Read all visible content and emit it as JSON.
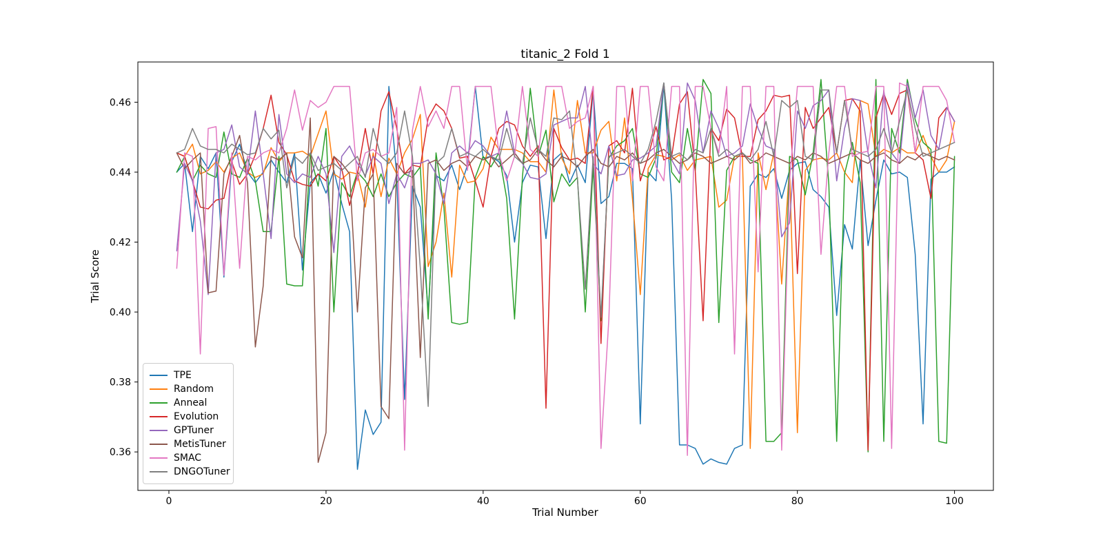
{
  "chart_data": {
    "type": "line",
    "title": "titanic_2 Fold 1",
    "xlabel": "Trial Number",
    "ylabel": "Trial Score",
    "xlim": [
      -3.95,
      104.95
    ],
    "ylim": [
      0.349,
      0.4715
    ],
    "xticks": [
      0,
      20,
      40,
      60,
      80,
      100
    ],
    "yticks": [
      "0.36",
      "0.38",
      "0.40",
      "0.42",
      "0.44",
      "0.46"
    ],
    "grid": false,
    "legend_position": "lower-left",
    "x0": 1,
    "dx": 1,
    "n_points": 100,
    "series": [
      {
        "name": "TPE",
        "color": "#1f77b4",
        "values": [
          0.44,
          0.4425,
          0.423,
          0.4445,
          0.441,
          0.4455,
          0.41,
          0.443,
          0.448,
          0.44,
          0.437,
          0.44,
          0.4435,
          0.44,
          0.437,
          0.4455,
          0.412,
          0.437,
          0.4395,
          0.434,
          0.4405,
          0.431,
          0.423,
          0.355,
          0.372,
          0.365,
          0.3685,
          0.4645,
          0.439,
          0.375,
          0.436,
          0.43,
          0.4,
          0.439,
          0.4375,
          0.442,
          0.435,
          0.442,
          0.4645,
          0.444,
          0.4445,
          0.443,
          0.439,
          0.42,
          0.437,
          0.442,
          0.4415,
          0.421,
          0.4435,
          0.4455,
          0.437,
          0.442,
          0.437,
          0.4635,
          0.431,
          0.433,
          0.4425,
          0.4425,
          0.441,
          0.368,
          0.44,
          0.4375,
          0.465,
          0.432,
          0.362,
          0.362,
          0.361,
          0.3565,
          0.358,
          0.357,
          0.3565,
          0.361,
          0.362,
          0.436,
          0.4395,
          0.4385,
          0.441,
          0.4325,
          0.4405,
          0.4425,
          0.443,
          0.435,
          0.433,
          0.43,
          0.399,
          0.425,
          0.418,
          0.4435,
          0.419,
          0.432,
          0.4435,
          0.4395,
          0.44,
          0.4385,
          0.4165,
          0.368,
          0.438,
          0.44,
          0.44,
          0.4415
        ]
      },
      {
        "name": "Random",
        "color": "#ff7f0e",
        "values": [
          0.4455,
          0.4445,
          0.448,
          0.4395,
          0.4405,
          0.443,
          0.44,
          0.444,
          0.4455,
          0.44,
          0.4385,
          0.4395,
          0.447,
          0.443,
          0.4455,
          0.4455,
          0.446,
          0.4445,
          0.451,
          0.4575,
          0.4395,
          0.438,
          0.44,
          0.4395,
          0.43,
          0.4455,
          0.433,
          0.444,
          0.4395,
          0.4455,
          0.4495,
          0.4565,
          0.413,
          0.42,
          0.434,
          0.41,
          0.442,
          0.437,
          0.4375,
          0.441,
          0.45,
          0.4465,
          0.4465,
          0.4465,
          0.4455,
          0.443,
          0.443,
          0.44,
          0.4635,
          0.444,
          0.4395,
          0.4605,
          0.4455,
          0.4455,
          0.452,
          0.4545,
          0.4375,
          0.4555,
          0.4325,
          0.405,
          0.441,
          0.445,
          0.4445,
          0.4435,
          0.445,
          0.4405,
          0.4435,
          0.444,
          0.4445,
          0.43,
          0.432,
          0.4445,
          0.4445,
          0.361,
          0.4455,
          0.435,
          0.4455,
          0.408,
          0.4415,
          0.3655,
          0.4405,
          0.4435,
          0.444,
          0.4435,
          0.4455,
          0.44,
          0.437,
          0.4605,
          0.4595,
          0.4445,
          0.4465,
          0.4455,
          0.447,
          0.4455,
          0.4455,
          0.4505,
          0.4445,
          0.44,
          0.4435,
          0.4545
        ]
      },
      {
        "name": "Anneal",
        "color": "#2ca02c",
        "values": [
          0.44,
          0.4445,
          0.4375,
          0.442,
          0.4395,
          0.4385,
          0.4515,
          0.4395,
          0.4385,
          0.444,
          0.4375,
          0.423,
          0.423,
          0.4445,
          0.408,
          0.4075,
          0.4075,
          0.445,
          0.436,
          0.4525,
          0.4,
          0.437,
          0.433,
          0.44,
          0.4375,
          0.433,
          0.4395,
          0.433,
          0.437,
          0.4395,
          0.4385,
          0.4415,
          0.398,
          0.4455,
          0.43,
          0.397,
          0.3965,
          0.397,
          0.4385,
          0.4445,
          0.4415,
          0.4455,
          0.4325,
          0.398,
          0.4385,
          0.464,
          0.4445,
          0.452,
          0.4315,
          0.4395,
          0.436,
          0.4385,
          0.4,
          0.4415,
          0.3975,
          0.444,
          0.4475,
          0.449,
          0.4525,
          0.4395,
          0.4385,
          0.444,
          0.4655,
          0.44,
          0.437,
          0.4525,
          0.4405,
          0.4665,
          0.4625,
          0.397,
          0.4405,
          0.4445,
          0.4455,
          0.4435,
          0.4425,
          0.363,
          0.363,
          0.3655,
          0.4445,
          0.4435,
          0.4335,
          0.4455,
          0.4665,
          0.4365,
          0.363,
          0.4395,
          0.4485,
          0.437,
          0.36,
          0.4665,
          0.363,
          0.4525,
          0.4455,
          0.4665,
          0.455,
          0.4485,
          0.4465,
          0.363,
          0.3625,
          0.4445
        ]
      },
      {
        "name": "Evolution",
        "color": "#d62728",
        "values": [
          0.4455,
          0.4445,
          0.4375,
          0.43,
          0.4295,
          0.432,
          0.4325,
          0.443,
          0.4365,
          0.4395,
          0.445,
          0.4525,
          0.462,
          0.4485,
          0.445,
          0.4375,
          0.4365,
          0.436,
          0.4395,
          0.4375,
          0.4445,
          0.441,
          0.4305,
          0.4395,
          0.4525,
          0.4395,
          0.4575,
          0.463,
          0.4525,
          0.4395,
          0.442,
          0.4415,
          0.4555,
          0.4595,
          0.4575,
          0.4525,
          0.444,
          0.4445,
          0.4375,
          0.43,
          0.4445,
          0.4525,
          0.4545,
          0.4535,
          0.4475,
          0.4445,
          0.4475,
          0.3725,
          0.4525,
          0.447,
          0.4435,
          0.444,
          0.4425,
          0.4645,
          0.391,
          0.4475,
          0.449,
          0.4455,
          0.464,
          0.4375,
          0.4445,
          0.453,
          0.4435,
          0.4445,
          0.4595,
          0.463,
          0.4405,
          0.3975,
          0.4525,
          0.449,
          0.458,
          0.4555,
          0.4445,
          0.4445,
          0.455,
          0.4575,
          0.462,
          0.4615,
          0.462,
          0.411,
          0.4585,
          0.4525,
          0.4555,
          0.4585,
          0.4455,
          0.4605,
          0.461,
          0.4575,
          0.3605,
          0.4555,
          0.4625,
          0.4565,
          0.4625,
          0.4635,
          0.4455,
          0.4435,
          0.4325,
          0.4555,
          0.4585,
          0.4545
        ]
      },
      {
        "name": "GPTuner",
        "color": "#9467bd",
        "values": [
          0.4175,
          0.4425,
          0.4375,
          0.426,
          0.405,
          0.4455,
          0.4465,
          0.4535,
          0.4415,
          0.4395,
          0.4575,
          0.4395,
          0.421,
          0.4565,
          0.4395,
          0.437,
          0.4395,
          0.4385,
          0.4445,
          0.4395,
          0.417,
          0.4445,
          0.4475,
          0.4425,
          0.439,
          0.4445,
          0.4425,
          0.431,
          0.4395,
          0.4355,
          0.4425,
          0.4425,
          0.4435,
          0.4395,
          0.431,
          0.4455,
          0.4475,
          0.4455,
          0.449,
          0.4475,
          0.4445,
          0.4455,
          0.4575,
          0.4455,
          0.4425,
          0.4385,
          0.438,
          0.4395,
          0.4535,
          0.4545,
          0.4555,
          0.4555,
          0.4645,
          0.4425,
          0.4395,
          0.4475,
          0.439,
          0.4395,
          0.4435,
          0.444,
          0.4455,
          0.4475,
          0.4655,
          0.4435,
          0.4395,
          0.4655,
          0.4605,
          0.4455,
          0.4575,
          0.4525,
          0.4445,
          0.4455,
          0.4475,
          0.4595,
          0.4525,
          0.4475,
          0.4465,
          0.4215,
          0.4255,
          0.4575,
          0.4525,
          0.459,
          0.4605,
          0.4635,
          0.4375,
          0.4525,
          0.461,
          0.4605,
          0.4455,
          0.4355,
          0.4635,
          0.4455,
          0.4425,
          0.4655,
          0.4555,
          0.4635,
          0.4505,
          0.4465,
          0.4585,
          0.4545
        ]
      },
      {
        "name": "MetisTuner",
        "color": "#8c564b",
        "values": [
          0.4455,
          0.441,
          0.4435,
          0.4455,
          0.4055,
          0.406,
          0.4395,
          0.4445,
          0.4505,
          0.437,
          0.39,
          0.4075,
          0.4445,
          0.4435,
          0.4455,
          0.4215,
          0.4155,
          0.4555,
          0.357,
          0.3655,
          0.4445,
          0.4425,
          0.4395,
          0.4,
          0.4355,
          0.4395,
          0.373,
          0.3695,
          0.4425,
          0.4395,
          0.4405,
          0.387,
          0.4425,
          0.4435,
          0.4405,
          0.4425,
          0.4435,
          0.4415,
          0.4445,
          0.4435,
          0.4445,
          0.4415,
          0.4435,
          0.4455,
          0.4425,
          0.4435,
          0.4465,
          0.4435,
          0.4415,
          0.4445,
          0.4435,
          0.4415,
          0.4445,
          0.4465,
          0.4425,
          0.4415,
          0.4445,
          0.4435,
          0.4455,
          0.4425,
          0.4435,
          0.4455,
          0.4465,
          0.4445,
          0.4425,
          0.4435,
          0.4455,
          0.4445,
          0.4425,
          0.4435,
          0.4445,
          0.4435,
          0.4455,
          0.4425,
          0.4435,
          0.4455,
          0.4445,
          0.4435,
          0.4425,
          0.4445,
          0.4435,
          0.4455,
          0.4445,
          0.4425,
          0.4435,
          0.4445,
          0.4455,
          0.4435,
          0.4425,
          0.4445,
          0.4455,
          0.4435,
          0.4425,
          0.4445,
          0.4435,
          0.4455,
          0.4445,
          0.4435,
          0.4445,
          0.4435
        ]
      },
      {
        "name": "SMAC",
        "color": "#e377c2",
        "values": [
          0.4125,
          0.4455,
          0.4445,
          0.388,
          0.4525,
          0.453,
          0.4105,
          0.4455,
          0.4125,
          0.4445,
          0.4435,
          0.4455,
          0.4465,
          0.4455,
          0.4525,
          0.4635,
          0.452,
          0.4605,
          0.4585,
          0.46,
          0.4645,
          0.4645,
          0.4645,
          0.4375,
          0.4455,
          0.4465,
          0.4445,
          0.4455,
          0.4585,
          0.3605,
          0.452,
          0.4645,
          0.453,
          0.4575,
          0.4525,
          0.4645,
          0.4645,
          0.4405,
          0.4645,
          0.4645,
          0.4645,
          0.4455,
          0.4375,
          0.4445,
          0.4645,
          0.4465,
          0.4445,
          0.4645,
          0.4645,
          0.4645,
          0.4525,
          0.4545,
          0.4555,
          0.4645,
          0.361,
          0.398,
          0.4645,
          0.4645,
          0.4375,
          0.4645,
          0.4645,
          0.4415,
          0.4375,
          0.4645,
          0.4645,
          0.359,
          0.4645,
          0.4645,
          0.4525,
          0.4455,
          0.4645,
          0.388,
          0.4645,
          0.4645,
          0.4115,
          0.4645,
          0.4645,
          0.3605,
          0.4375,
          0.4645,
          0.4645,
          0.4645,
          0.4165,
          0.4455,
          0.4645,
          0.4645,
          0.4445,
          0.4455,
          0.446,
          0.4645,
          0.4645,
          0.361,
          0.4655,
          0.4645,
          0.4455,
          0.4645,
          0.4645,
          0.4645,
          0.4605,
          0.4485
        ]
      },
      {
        "name": "DNGOTuner",
        "color": "#7f7f7f",
        "values": [
          0.4455,
          0.4465,
          0.4525,
          0.4475,
          0.4465,
          0.4465,
          0.4455,
          0.448,
          0.4465,
          0.445,
          0.4455,
          0.4525,
          0.4495,
          0.452,
          0.4355,
          0.4445,
          0.4425,
          0.4455,
          0.4405,
          0.4415,
          0.4425,
          0.4405,
          0.4425,
          0.4445,
          0.4385,
          0.4525,
          0.4445,
          0.4425,
          0.4455,
          0.4575,
          0.4445,
          0.4125,
          0.373,
          0.4425,
          0.4445,
          0.4525,
          0.4445,
          0.4455,
          0.4445,
          0.4465,
          0.4445,
          0.4435,
          0.4525,
          0.4445,
          0.4425,
          0.4555,
          0.4465,
          0.4445,
          0.4555,
          0.455,
          0.4575,
          0.438,
          0.4065,
          0.4445,
          0.3985,
          0.4445,
          0.4455,
          0.4465,
          0.4445,
          0.4425,
          0.4465,
          0.4545,
          0.4655,
          0.4445,
          0.4455,
          0.4435,
          0.4465,
          0.4455,
          0.4525,
          0.4445,
          0.4465,
          0.4445,
          0.4455,
          0.4435,
          0.4465,
          0.4545,
          0.4445,
          0.4605,
          0.4585,
          0.4605,
          0.4445,
          0.4435,
          0.4635,
          0.4635,
          0.4455,
          0.4605,
          0.4465,
          0.4455,
          0.4445,
          0.4465,
          0.4525,
          0.4455,
          0.4545,
          0.4635,
          0.4525,
          0.4445,
          0.4455,
          0.4465,
          0.4475,
          0.4485
        ]
      }
    ]
  }
}
